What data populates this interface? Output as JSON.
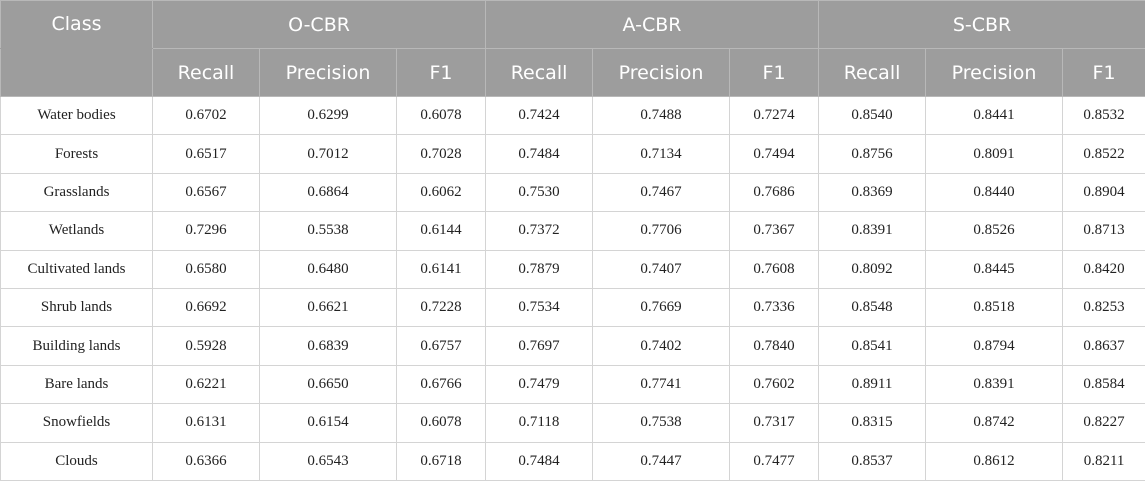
{
  "table": {
    "class_header": "Class",
    "groups": [
      {
        "name": "O-CBR",
        "columns": [
          "Recall",
          "Precision",
          "F1"
        ]
      },
      {
        "name": "A-CBR",
        "columns": [
          "Recall",
          "Precision",
          "F1"
        ]
      },
      {
        "name": "S-CBR",
        "columns": [
          "Recall",
          "Precision",
          "F1"
        ]
      }
    ],
    "rows": [
      [
        "Water bodies",
        "0.6702",
        "0.6299",
        "0.6078",
        "0.7424",
        "0.7488",
        "0.7274",
        "0.8540",
        "0.8441",
        "0.8532"
      ],
      [
        "Forests",
        "0.6517",
        "0.7012",
        "0.7028",
        "0.7484",
        "0.7134",
        "0.7494",
        "0.8756",
        "0.8091",
        "0.8522"
      ],
      [
        "Grasslands",
        "0.6567",
        "0.6864",
        "0.6062",
        "0.7530",
        "0.7467",
        "0.7686",
        "0.8369",
        "0.8440",
        "0.8904"
      ],
      [
        "Wetlands",
        "0.7296",
        "0.5538",
        "0.6144",
        "0.7372",
        "0.7706",
        "0.7367",
        "0.8391",
        "0.8526",
        "0.8713"
      ],
      [
        "Cultivated lands",
        "0.6580",
        "0.6480",
        "0.6141",
        "0.7879",
        "0.7407",
        "0.7608",
        "0.8092",
        "0.8445",
        "0.8420"
      ],
      [
        "Shrub lands",
        "0.6692",
        "0.6621",
        "0.7228",
        "0.7534",
        "0.7669",
        "0.7336",
        "0.8548",
        "0.8518",
        "0.8253"
      ],
      [
        "Building lands",
        "0.5928",
        "0.6839",
        "0.6757",
        "0.7697",
        "0.7402",
        "0.7840",
        "0.8541",
        "0.8794",
        "0.8637"
      ],
      [
        "Bare lands",
        "0.6221",
        "0.6650",
        "0.6766",
        "0.7479",
        "0.7741",
        "0.7602",
        "0.8911",
        "0.8391",
        "0.8584"
      ],
      [
        "Snowfields",
        "0.6131",
        "0.6154",
        "0.6078",
        "0.7118",
        "0.7538",
        "0.7317",
        "0.8315",
        "0.8742",
        "0.8227"
      ],
      [
        "Clouds",
        "0.6366",
        "0.6543",
        "0.6718",
        "0.7484",
        "0.7447",
        "0.7477",
        "0.8537",
        "0.8612",
        "0.8211"
      ]
    ]
  }
}
